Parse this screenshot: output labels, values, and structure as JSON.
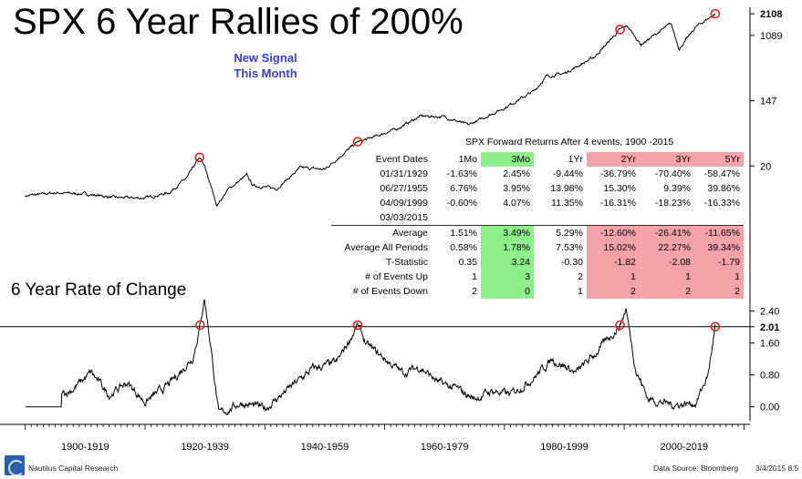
{
  "header": {
    "title": "SPX 6 Year Rallies of 200%",
    "signal_line1": "New Signal",
    "signal_line2": "This Month",
    "roc_label": "6 Year Rate of Change"
  },
  "footer": {
    "brand": "Nautilus Capital Research",
    "source": "Data Source: Bloomberg",
    "date": "3/4/2015 8:5"
  },
  "colors": {
    "line": "#000000",
    "signal": "#3b3bd6",
    "marker": "#e02020",
    "green_cell": "#8ef08a",
    "pink_cell": "#f4a3a9"
  },
  "chart_data": [
    {
      "type": "line",
      "panel": "price",
      "title": "SPX 6 Year Rallies of 200%",
      "yscale": "log",
      "ylim": [
        5,
        2300
      ],
      "y_ticks": [
        "2108",
        "1089",
        "147",
        "20"
      ],
      "y_tick_values": [
        2108,
        1089,
        147,
        20
      ],
      "x": [
        1900,
        1905,
        1910,
        1915,
        1920,
        1924,
        1927,
        1929.1,
        1930,
        1932,
        1934,
        1937,
        1938,
        1942,
        1946,
        1950,
        1955.5,
        1957,
        1962,
        1966,
        1970,
        1974,
        1980,
        1985,
        1987,
        1990,
        1995,
        1999.3,
        2000.5,
        2002.8,
        2007.8,
        2009.2,
        2012,
        2015.2
      ],
      "values": [
        8.0,
        8.8,
        8.5,
        7.6,
        7.5,
        8.8,
        14,
        26,
        19,
        6.0,
        10,
        15,
        11,
        10,
        19,
        18,
        42,
        45,
        62,
        92,
        90,
        70,
        118,
        200,
        310,
        340,
        560,
        1300,
        1450,
        820,
        1560,
        720,
        1420,
        2108
      ],
      "markers": [
        {
          "x": 1929.1,
          "y": 26
        },
        {
          "x": 1955.5,
          "y": 42
        },
        {
          "x": 1999.3,
          "y": 1300
        },
        {
          "x": 2015.2,
          "y": 2108
        }
      ]
    },
    {
      "type": "line",
      "panel": "rate_of_change",
      "title": "6 Year Rate of Change",
      "ylim": [
        -0.35,
        2.85
      ],
      "y_ticks": [
        "2.40",
        "2.01",
        "1.60",
        "0.80",
        "0.00"
      ],
      "y_tick_values": [
        2.4,
        2.01,
        1.6,
        0.8,
        0.0
      ],
      "threshold": 2.01,
      "x": [
        1900,
        1906,
        1906.05,
        1908,
        1911,
        1914,
        1917,
        1920,
        1924,
        1928,
        1929.2,
        1929.9,
        1931,
        1932.3,
        1936,
        1940,
        1944,
        1948,
        1952,
        1955.5,
        1957,
        1960,
        1963,
        1966,
        1969,
        1972,
        1975,
        1978,
        1981,
        1985,
        1988,
        1992,
        1995,
        1999.3,
        2000.3,
        2002,
        2004,
        2008,
        2012,
        2014,
        2015.2
      ],
      "values": [
        0.0,
        0.0,
        0.3,
        0.45,
        0.85,
        0.3,
        0.6,
        0.12,
        0.55,
        1.25,
        2.05,
        2.75,
        1.5,
        -0.2,
        0.1,
        -0.05,
        0.45,
        0.95,
        1.1,
        2.05,
        1.55,
        1.2,
        0.85,
        1.0,
        0.6,
        0.45,
        0.2,
        0.4,
        0.3,
        0.75,
        1.2,
        0.85,
        1.3,
        2.05,
        2.45,
        0.9,
        0.2,
        0.05,
        0.1,
        0.8,
        2.01
      ],
      "markers": [
        {
          "x": 1929.2,
          "y": 2.05
        },
        {
          "x": 1955.5,
          "y": 2.05
        },
        {
          "x": 1999.3,
          "y": 2.05
        },
        {
          "x": 2015.2,
          "y": 2.01
        }
      ]
    },
    {
      "type": "table",
      "title": "SPX Forward Returns After 4 events, 1900 -2015",
      "columns": [
        "Event Dates",
        "1Mo",
        "3Mo",
        "1Yr",
        "2Yr",
        "3Yr",
        "5Yr"
      ],
      "rows": [
        [
          "01/31/1929",
          "-1.63%",
          "2.45%",
          "-9.44%",
          "-36.79%",
          "-70.40%",
          "-58.47%"
        ],
        [
          "06/27/1955",
          "6.76%",
          "3.95%",
          "13.98%",
          "15.30%",
          "9.39%",
          "39.86%"
        ],
        [
          "04/09/1999",
          "-0.60%",
          "4.07%",
          "11.35%",
          "-16.31%",
          "-18.23%",
          "-16.33%"
        ],
        [
          "03/03/2015",
          "",
          "",
          "",
          "",
          "",
          ""
        ]
      ],
      "summary": [
        [
          "Average",
          "1.51%",
          "3.49%",
          "5.29%",
          "-12.60%",
          "-26.41%",
          "-11.65%"
        ],
        [
          "Average All Periods",
          "0.58%",
          "1.78%",
          "7.53%",
          "15.02%",
          "22.27%",
          "39.34%"
        ],
        [
          "T-Statistic",
          "0.35",
          "3.24",
          "-0.30",
          "-1.82",
          "-2.08",
          "-1.79"
        ],
        [
          "# of Events Up",
          "1",
          "3",
          "2",
          "1",
          "1",
          "1"
        ],
        [
          "# of Events Down",
          "2",
          "0",
          "1",
          "2",
          "2",
          "2"
        ]
      ]
    }
  ],
  "x_axis": {
    "periods": [
      "1900-1919",
      "1920-1939",
      "1940-1959",
      "1960-1979",
      "1980-1999",
      "2000-2019"
    ]
  }
}
